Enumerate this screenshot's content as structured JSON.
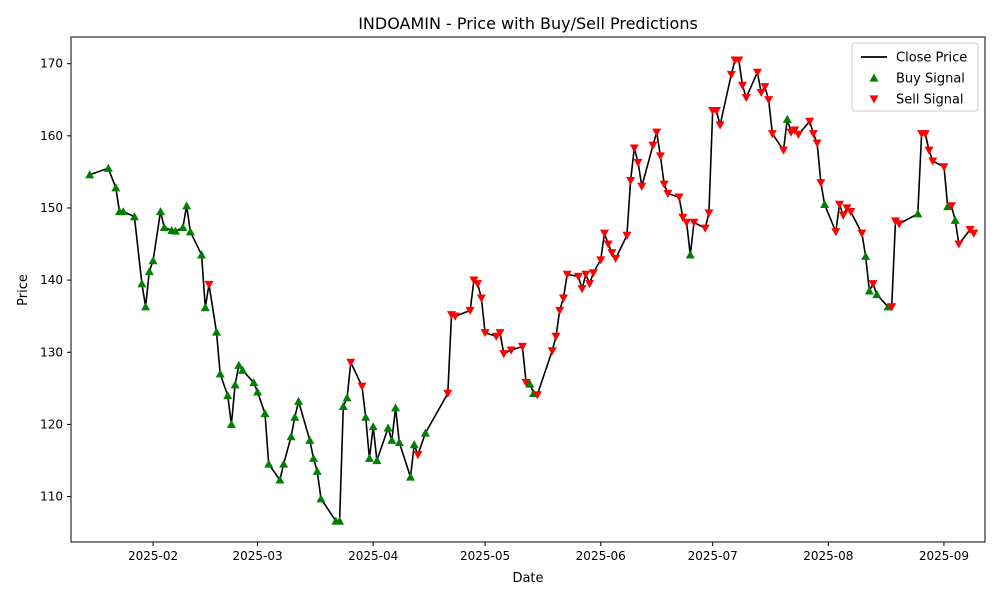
{
  "chart_data": {
    "type": "line",
    "title": "INDOAMIN - Price with Buy/Sell Predictions",
    "xlabel": "Date",
    "ylabel": "Price",
    "x_tick_labels": [
      "2025-02",
      "2025-03",
      "2025-04",
      "2025-05",
      "2025-06",
      "2025-07",
      "2025-08",
      "2025-09"
    ],
    "x_tick_dates": [
      "2025-02-01",
      "2025-03-01",
      "2025-04-01",
      "2025-05-01",
      "2025-06-01",
      "2025-07-01",
      "2025-08-01",
      "2025-09-01"
    ],
    "y_ticks": [
      110,
      120,
      130,
      140,
      150,
      160,
      170
    ],
    "xlim": [
      "2025-01-10",
      "2025-09-12"
    ],
    "ylim": [
      103.7,
      173.7
    ],
    "grid": false,
    "legend": {
      "position": "top-right",
      "entries": [
        {
          "label": "Close Price",
          "marker": "line",
          "color": "#000000"
        },
        {
          "label": "Buy Signal",
          "marker": "triangle-up",
          "color": "#008000"
        },
        {
          "label": "Sell Signal",
          "marker": "triangle-down",
          "color": "#ff0000"
        }
      ]
    },
    "colors": {
      "close": "#000000",
      "buy": "#008000",
      "sell": "#ff0000"
    },
    "series": [
      {
        "name": "Close Price",
        "points": [
          [
            "2025-01-15",
            154.6,
            "buy"
          ],
          [
            "2025-01-20",
            155.5,
            "buy"
          ],
          [
            "2025-01-22",
            152.8,
            "buy"
          ],
          [
            "2025-01-23",
            149.5,
            "buy"
          ],
          [
            "2025-01-24",
            149.5,
            "buy"
          ],
          [
            "2025-01-27",
            148.8,
            "buy"
          ],
          [
            "2025-01-29",
            139.5,
            "buy"
          ],
          [
            "2025-01-30",
            136.3,
            "buy"
          ],
          [
            "2025-01-31",
            141.2,
            "buy"
          ],
          [
            "2025-02-01",
            142.7,
            "buy"
          ],
          [
            "2025-02-03",
            149.5,
            "buy"
          ],
          [
            "2025-02-04",
            147.3,
            "buy"
          ],
          [
            "2025-02-06",
            146.9,
            "buy"
          ],
          [
            "2025-02-07",
            146.8,
            "buy"
          ],
          [
            "2025-02-09",
            147.3,
            "buy"
          ],
          [
            "2025-02-10",
            150.3,
            "buy"
          ],
          [
            "2025-02-11",
            146.7,
            "buy"
          ],
          [
            "2025-02-14",
            143.5,
            "buy"
          ],
          [
            "2025-02-15",
            136.2,
            "buy"
          ],
          [
            "2025-02-16",
            139.4,
            "sell"
          ],
          [
            "2025-02-18",
            132.8,
            "buy"
          ],
          [
            "2025-02-19",
            127.0,
            "buy"
          ],
          [
            "2025-02-21",
            124.0,
            "buy"
          ],
          [
            "2025-02-22",
            120.0,
            "buy"
          ],
          [
            "2025-02-23",
            125.5,
            "buy"
          ],
          [
            "2025-02-24",
            128.2,
            "buy"
          ],
          [
            "2025-02-25",
            127.5,
            "buy"
          ],
          [
            "2025-02-28",
            125.8,
            "buy"
          ],
          [
            "2025-03-01",
            124.5,
            "buy"
          ],
          [
            "2025-03-03",
            121.5,
            "buy"
          ],
          [
            "2025-03-04",
            114.5,
            "buy"
          ],
          [
            "2025-03-07",
            112.3,
            "buy"
          ],
          [
            "2025-03-08",
            114.5,
            "buy"
          ],
          [
            "2025-03-10",
            118.3,
            "buy"
          ],
          [
            "2025-03-11",
            121.0,
            "buy"
          ],
          [
            "2025-03-12",
            123.2,
            "buy"
          ],
          [
            "2025-03-15",
            117.8,
            "buy"
          ],
          [
            "2025-03-16",
            115.3,
            "buy"
          ],
          [
            "2025-03-17",
            113.5,
            "buy"
          ],
          [
            "2025-03-18",
            109.7,
            "buy"
          ],
          [
            "2025-03-22",
            106.6,
            "buy"
          ],
          [
            "2025-03-23",
            106.6,
            "buy"
          ],
          [
            "2025-03-24",
            122.5,
            "buy"
          ],
          [
            "2025-03-25",
            123.7,
            "buy"
          ],
          [
            "2025-03-26",
            128.6,
            "sell"
          ],
          [
            "2025-03-29",
            125.3,
            "sell"
          ],
          [
            "2025-03-30",
            121.0,
            "buy"
          ],
          [
            "2025-03-31",
            115.3,
            "buy"
          ],
          [
            "2025-04-01",
            119.7,
            "buy"
          ],
          [
            "2025-04-02",
            115.0,
            "buy"
          ],
          [
            "2025-04-05",
            119.5,
            "buy"
          ],
          [
            "2025-04-06",
            117.8,
            "buy"
          ],
          [
            "2025-04-07",
            122.3,
            "buy"
          ],
          [
            "2025-04-08",
            117.5,
            "buy"
          ],
          [
            "2025-04-11",
            112.7,
            "buy"
          ],
          [
            "2025-04-12",
            117.2,
            "buy"
          ],
          [
            "2025-04-13",
            115.8,
            "sell"
          ],
          [
            "2025-04-15",
            118.8,
            "buy"
          ],
          [
            "2025-04-21",
            124.3,
            "sell"
          ],
          [
            "2025-04-22",
            135.2,
            "sell"
          ],
          [
            "2025-04-23",
            135.0,
            "sell"
          ],
          [
            "2025-04-27",
            135.8,
            "sell"
          ],
          [
            "2025-04-28",
            140.0,
            "sell"
          ],
          [
            "2025-04-29",
            139.5,
            "sell"
          ],
          [
            "2025-04-30",
            137.5,
            "sell"
          ],
          [
            "2025-05-01",
            132.7,
            "sell"
          ],
          [
            "2025-05-04",
            132.2,
            "sell"
          ],
          [
            "2025-05-05",
            132.7,
            "sell"
          ],
          [
            "2025-05-06",
            129.8,
            "sell"
          ],
          [
            "2025-05-08",
            130.3,
            "sell"
          ],
          [
            "2025-05-11",
            130.8,
            "sell"
          ],
          [
            "2025-05-12",
            125.8,
            "sell"
          ],
          [
            "2025-05-13",
            125.6,
            "buy"
          ],
          [
            "2025-05-14",
            124.3,
            "buy"
          ],
          [
            "2025-05-15",
            124.1,
            "sell"
          ],
          [
            "2025-05-19",
            130.2,
            "sell"
          ],
          [
            "2025-05-20",
            132.2,
            "sell"
          ],
          [
            "2025-05-21",
            135.8,
            "sell"
          ],
          [
            "2025-05-22",
            137.5,
            "sell"
          ],
          [
            "2025-05-23",
            140.8,
            "sell"
          ],
          [
            "2025-05-26",
            140.5,
            "sell"
          ],
          [
            "2025-05-27",
            138.8,
            "sell"
          ],
          [
            "2025-05-28",
            140.8,
            "sell"
          ],
          [
            "2025-05-29",
            139.5,
            "sell"
          ],
          [
            "2025-05-30",
            141.0,
            "sell"
          ],
          [
            "2025-06-01",
            142.8,
            "sell"
          ],
          [
            "2025-06-02",
            146.5,
            "sell"
          ],
          [
            "2025-06-03",
            145.0,
            "sell"
          ],
          [
            "2025-06-04",
            143.8,
            "sell"
          ],
          [
            "2025-06-05",
            143.0,
            "sell"
          ],
          [
            "2025-06-08",
            146.2,
            "sell"
          ],
          [
            "2025-06-09",
            153.8,
            "sell"
          ],
          [
            "2025-06-10",
            158.3,
            "sell"
          ],
          [
            "2025-06-11",
            156.3,
            "sell"
          ],
          [
            "2025-06-12",
            153.0,
            "sell"
          ],
          [
            "2025-06-15",
            158.7,
            "sell"
          ],
          [
            "2025-06-16",
            160.5,
            "sell"
          ],
          [
            "2025-06-17",
            157.2,
            "sell"
          ],
          [
            "2025-06-18",
            153.3,
            "sell"
          ],
          [
            "2025-06-19",
            152.0,
            "sell"
          ],
          [
            "2025-06-22",
            151.5,
            "sell"
          ],
          [
            "2025-06-23",
            148.7,
            "sell"
          ],
          [
            "2025-06-24",
            148.0,
            "sell"
          ],
          [
            "2025-06-25",
            143.5,
            "buy"
          ],
          [
            "2025-06-26",
            148.0,
            "sell"
          ],
          [
            "2025-06-29",
            147.2,
            "sell"
          ],
          [
            "2025-06-30",
            149.3,
            "sell"
          ],
          [
            "2025-07-01",
            163.5,
            "sell"
          ],
          [
            "2025-07-02",
            163.5,
            "sell"
          ],
          [
            "2025-07-03",
            161.5,
            "sell"
          ],
          [
            "2025-07-06",
            168.5,
            "sell"
          ],
          [
            "2025-07-07",
            170.5,
            "sell"
          ],
          [
            "2025-07-08",
            170.5,
            "sell"
          ],
          [
            "2025-07-09",
            167.0,
            "sell"
          ],
          [
            "2025-07-10",
            165.3,
            "sell"
          ],
          [
            "2025-07-13",
            168.8,
            "sell"
          ],
          [
            "2025-07-14",
            166.0,
            "sell"
          ],
          [
            "2025-07-15",
            166.8,
            "sell"
          ],
          [
            "2025-07-16",
            165.0,
            "sell"
          ],
          [
            "2025-07-17",
            160.3,
            "sell"
          ],
          [
            "2025-07-20",
            158.0,
            "sell"
          ],
          [
            "2025-07-21",
            162.3,
            "buy"
          ],
          [
            "2025-07-22",
            160.5,
            "sell"
          ],
          [
            "2025-07-23",
            160.8,
            "sell"
          ],
          [
            "2025-07-24",
            160.2,
            "sell"
          ],
          [
            "2025-07-27",
            162.0,
            "sell"
          ],
          [
            "2025-07-28",
            160.3,
            "sell"
          ],
          [
            "2025-07-29",
            159.0,
            "sell"
          ],
          [
            "2025-07-30",
            153.5,
            "sell"
          ],
          [
            "2025-07-31",
            150.5,
            "buy"
          ],
          [
            "2025-08-03",
            146.7,
            "sell"
          ],
          [
            "2025-08-04",
            150.5,
            "sell"
          ],
          [
            "2025-08-05",
            149.0,
            "sell"
          ],
          [
            "2025-08-06",
            150.0,
            "sell"
          ],
          [
            "2025-08-07",
            149.5,
            "sell"
          ],
          [
            "2025-08-10",
            146.5,
            "sell"
          ],
          [
            "2025-08-11",
            143.3,
            "buy"
          ],
          [
            "2025-08-12",
            138.5,
            "buy"
          ],
          [
            "2025-08-13",
            139.5,
            "sell"
          ],
          [
            "2025-08-14",
            138.0,
            "buy"
          ],
          [
            "2025-08-17",
            136.3,
            "buy"
          ],
          [
            "2025-08-18",
            136.3,
            "sell"
          ],
          [
            "2025-08-19",
            148.2,
            "sell"
          ],
          [
            "2025-08-20",
            147.8,
            "sell"
          ],
          [
            "2025-08-25",
            149.2,
            "buy"
          ],
          [
            "2025-08-26",
            160.3,
            "sell"
          ],
          [
            "2025-08-27",
            160.3,
            "sell"
          ],
          [
            "2025-08-28",
            158.0,
            "sell"
          ],
          [
            "2025-08-29",
            156.5,
            "sell"
          ],
          [
            "2025-09-01",
            155.7,
            "sell"
          ],
          [
            "2025-09-02",
            150.2,
            "buy"
          ],
          [
            "2025-09-03",
            150.3,
            "sell"
          ],
          [
            "2025-09-04",
            148.3,
            "buy"
          ],
          [
            "2025-09-05",
            145.0,
            "sell"
          ],
          [
            "2025-09-08",
            147.0,
            "sell"
          ],
          [
            "2025-09-09",
            146.5,
            "sell"
          ]
        ]
      }
    ]
  }
}
